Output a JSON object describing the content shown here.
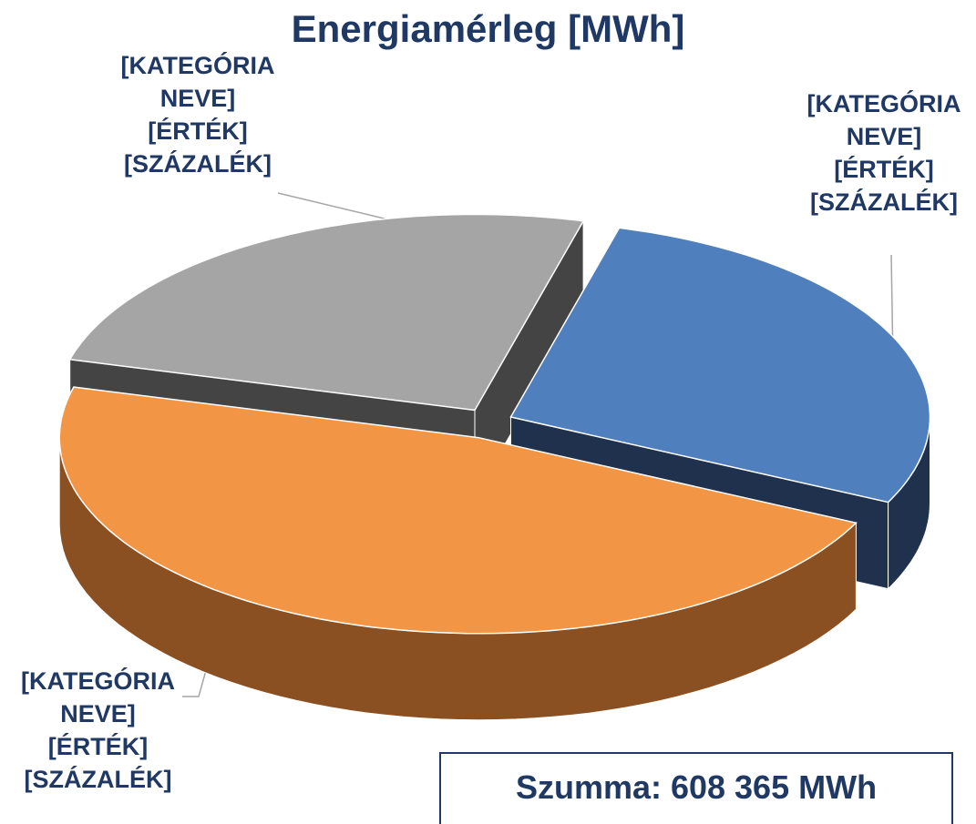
{
  "chart_data": {
    "type": "pie3d",
    "title": "Energiamérleg [MWh]",
    "categories": [
      "[KATEGÓRIA NEVE]",
      "[KATEGÓRIA NEVE]",
      "[KATEGÓRIA NEVE]"
    ],
    "values": [
      28,
      47,
      25
    ],
    "value_labels": [
      "[ÉRTÉK]",
      "[ÉRTÉK]",
      "[ÉRTÉK]"
    ],
    "percent_labels": [
      "[SZÁZALÉK]",
      "[SZÁZALÉK]",
      "[SZÁZALÉK]"
    ],
    "colors": [
      "#4f7fbd",
      "#f29544",
      "#a5a5a5"
    ],
    "side_colors": [
      "#1f314c",
      "#8a5022",
      "#444444"
    ],
    "annotation": "Szumma: 608 365 MWh"
  }
}
